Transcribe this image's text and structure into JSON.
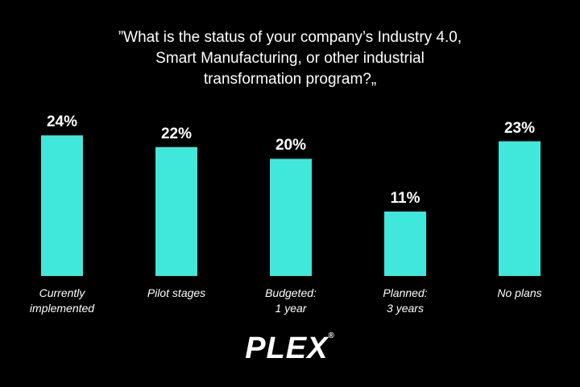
{
  "chart_data": {
    "type": "bar",
    "title": "”What is the status of your company’s Industry 4.0,\nSmart Manufacturing, or other industrial\ntransformation program?„",
    "categories": [
      "Currently\nimplemented",
      "Pilot stages",
      "Budgeted:\n1 year",
      "Planned:\n3 years",
      "No plans"
    ],
    "values": [
      24,
      22,
      20,
      11,
      23
    ],
    "value_labels": [
      "24%",
      "22%",
      "20%",
      "11%",
      "23%"
    ],
    "color": "#40e8dc",
    "ylim": [
      0,
      25
    ]
  },
  "logo": "PLEX"
}
